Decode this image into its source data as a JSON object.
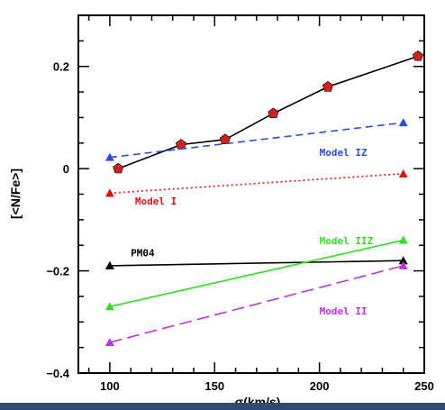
{
  "chart_data": {
    "type": "line",
    "xlabel": "σ(km/s)",
    "ylabel": "[<N/Fe>]",
    "xlim": [
      85,
      250
    ],
    "ylim": [
      -0.4,
      0.3
    ],
    "xticks": [
      100,
      150,
      200,
      250
    ],
    "yticks": [
      -0.4,
      -0.2,
      0,
      0.2
    ],
    "xtick_labels": [
      "100",
      "150",
      "200",
      "250"
    ],
    "ytick_labels": [
      "−0.4",
      "−0.2",
      "0",
      "0.2"
    ],
    "series": [
      {
        "name": "",
        "marker": "pentagon",
        "line": "solid",
        "color": "#000000",
        "marker_color": "#cc2222",
        "x": [
          104,
          134,
          155,
          178,
          204,
          247
        ],
        "y": [
          0.0,
          0.047,
          0.057,
          0.108,
          0.16,
          0.22
        ]
      },
      {
        "name": "Model IZ",
        "marker": "triangle",
        "line": "dashed",
        "color": "#2a4fd6",
        "x": [
          100,
          240
        ],
        "y": [
          0.022,
          0.09
        ]
      },
      {
        "name": "Model I",
        "marker": "triangle",
        "line": "dotted",
        "color": "#dd1111",
        "x": [
          100,
          240
        ],
        "y": [
          -0.048,
          -0.01
        ]
      },
      {
        "name": "PM04",
        "marker": "triangle",
        "line": "solid",
        "color": "#000000",
        "x": [
          100,
          240
        ],
        "y": [
          -0.19,
          -0.18
        ]
      },
      {
        "name": "Model IIZ",
        "marker": "triangle",
        "line": "solid",
        "color": "#33dd22",
        "x": [
          100,
          240
        ],
        "y": [
          -0.27,
          -0.14
        ]
      },
      {
        "name": "Model II",
        "marker": "triangle",
        "line": "longdash",
        "color": "#bb33dd",
        "x": [
          100,
          240
        ],
        "y": [
          -0.34,
          -0.19
        ]
      }
    ],
    "annotations": [
      {
        "text": "Model IZ",
        "x": 200,
        "y": 0.025,
        "color": "#2a4fd6"
      },
      {
        "text": "Model I",
        "x": 112,
        "y": -0.07,
        "color": "#dd1111"
      },
      {
        "text": "PM04",
        "x": 110,
        "y": -0.172,
        "color": "#000000"
      },
      {
        "text": "Model IIZ",
        "x": 200,
        "y": -0.148,
        "color": "#33dd22"
      },
      {
        "text": "Model II",
        "x": 200,
        "y": -0.285,
        "color": "#bb33dd"
      }
    ],
    "grid": false
  }
}
